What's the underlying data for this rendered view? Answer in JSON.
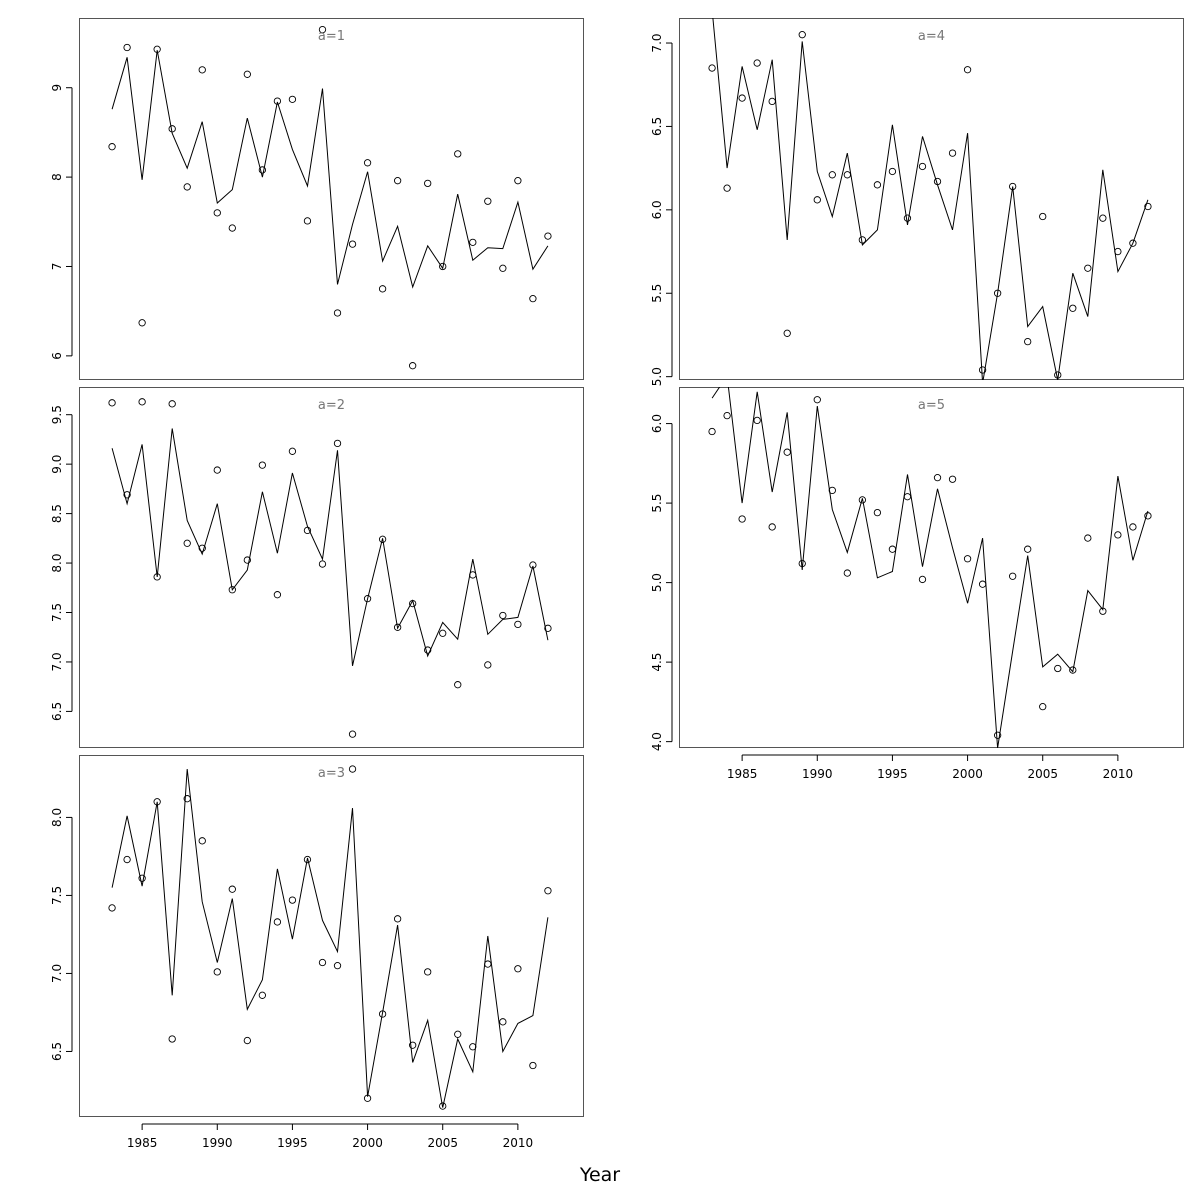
{
  "figure": {
    "xlabel": "Year"
  },
  "chart_data": [
    {
      "type": "line",
      "title": "a=1",
      "xlim": [
        1980.8,
        2014.4
      ],
      "ylim": [
        5.73,
        9.78
      ],
      "xticks": [
        1985,
        1990,
        1995,
        2000,
        2005,
        2010
      ],
      "yticks": [
        6,
        7,
        8,
        9
      ],
      "x": [
        1983,
        1984,
        1985,
        1986,
        1987,
        1988,
        1989,
        1990,
        1991,
        1992,
        1993,
        1994,
        1995,
        1996,
        1997,
        1998,
        1999,
        2000,
        2001,
        2002,
        2003,
        2004,
        2005,
        2006,
        2007,
        2008,
        2009,
        2010,
        2011,
        2012
      ],
      "series": [
        {
          "kind": "points",
          "values": [
            8.34,
            9.45,
            6.37,
            9.43,
            8.54,
            7.89,
            9.2,
            7.6,
            7.43,
            9.15,
            8.08,
            8.85,
            8.87,
            7.51,
            9.65,
            6.48,
            7.25,
            8.16,
            6.75,
            7.96,
            5.89,
            7.93,
            7.0,
            8.26,
            7.27,
            7.73,
            6.98,
            7.96,
            6.64,
            7.34
          ]
        },
        {
          "kind": "fitted",
          "values": [
            8.76,
            9.34,
            7.97,
            9.42,
            8.49,
            8.1,
            8.62,
            7.71,
            7.86,
            8.66,
            8.0,
            8.84,
            8.31,
            7.9,
            8.99,
            6.8,
            7.47,
            8.06,
            7.06,
            7.45,
            6.77,
            7.23,
            6.98,
            7.81,
            7.07,
            7.21,
            7.2,
            7.72,
            6.97,
            7.23
          ]
        }
      ]
    },
    {
      "type": "line",
      "title": "a=2",
      "xlim": [
        1980.8,
        2014.4
      ],
      "ylim": [
        6.13,
        9.78
      ],
      "xticks": [
        1985,
        1990,
        1995,
        2000,
        2005,
        2010
      ],
      "yticks": [
        6.5,
        7.0,
        7.5,
        8.0,
        8.5,
        9.0,
        9.5
      ],
      "x": [
        1983,
        1984,
        1985,
        1986,
        1987,
        1988,
        1989,
        1990,
        1991,
        1992,
        1993,
        1994,
        1995,
        1996,
        1997,
        1998,
        1999,
        2000,
        2001,
        2002,
        2003,
        2004,
        2005,
        2006,
        2007,
        2008,
        2009,
        2010,
        2011,
        2012
      ],
      "series": [
        {
          "kind": "points",
          "values": [
            9.62,
            8.69,
            9.63,
            7.86,
            9.61,
            8.2,
            8.15,
            8.94,
            7.73,
            8.03,
            8.99,
            7.68,
            9.13,
            8.33,
            7.99,
            9.21,
            6.27,
            7.64,
            8.24,
            7.35,
            7.59,
            7.12,
            7.29,
            6.77,
            7.88,
            6.97,
            7.47,
            7.38,
            7.98,
            7.34
          ]
        },
        {
          "kind": "fitted",
          "values": [
            9.16,
            8.6,
            9.2,
            7.86,
            9.36,
            8.43,
            8.09,
            8.6,
            7.73,
            7.93,
            8.72,
            8.1,
            8.91,
            8.37,
            8.04,
            9.14,
            6.96,
            7.64,
            8.25,
            7.34,
            7.62,
            7.06,
            7.4,
            7.23,
            8.04,
            7.28,
            7.43,
            7.45,
            7.97,
            7.22
          ]
        }
      ]
    },
    {
      "type": "line",
      "title": "a=3",
      "xlim": [
        1980.8,
        2014.4
      ],
      "ylim": [
        6.08,
        8.4
      ],
      "xticks": [
        1985,
        1990,
        1995,
        2000,
        2005,
        2010
      ],
      "yticks": [
        6.5,
        7.0,
        7.5,
        8.0
      ],
      "x": [
        1983,
        1984,
        1985,
        1986,
        1987,
        1988,
        1989,
        1990,
        1991,
        1992,
        1993,
        1994,
        1995,
        1996,
        1997,
        1998,
        1999,
        2000,
        2001,
        2002,
        2003,
        2004,
        2005,
        2006,
        2007,
        2008,
        2009,
        2010,
        2011,
        2012
      ],
      "series": [
        {
          "kind": "points",
          "values": [
            7.42,
            7.73,
            7.61,
            8.1,
            6.58,
            8.12,
            7.85,
            7.01,
            7.54,
            6.57,
            6.86,
            7.33,
            7.47,
            7.73,
            7.07,
            7.05,
            8.31,
            6.2,
            6.74,
            7.35,
            6.54,
            7.01,
            6.15,
            6.61,
            6.53,
            7.06,
            6.69,
            7.03,
            6.41,
            7.53
          ]
        },
        {
          "kind": "fitted",
          "values": [
            7.55,
            8.01,
            7.56,
            8.1,
            6.86,
            8.31,
            7.46,
            7.07,
            7.48,
            6.77,
            6.96,
            7.67,
            7.22,
            7.74,
            7.34,
            7.14,
            8.06,
            6.21,
            6.75,
            7.31,
            6.43,
            6.7,
            6.14,
            6.58,
            6.37,
            7.24,
            6.5,
            6.68,
            6.73,
            7.36
          ]
        }
      ]
    },
    {
      "type": "line",
      "title": "a=4",
      "xlim": [
        1980.8,
        2014.4
      ],
      "ylim": [
        4.98,
        7.15
      ],
      "xticks": [
        1985,
        1990,
        1995,
        2000,
        2005,
        2010
      ],
      "yticks": [
        5.0,
        5.5,
        6.0,
        6.5,
        7.0
      ],
      "x": [
        1983,
        1984,
        1985,
        1986,
        1987,
        1988,
        1989,
        1990,
        1991,
        1992,
        1993,
        1994,
        1995,
        1996,
        1997,
        1998,
        1999,
        2000,
        2001,
        2002,
        2003,
        2004,
        2005,
        2006,
        2007,
        2008,
        2009,
        2010,
        2011,
        2012
      ],
      "series": [
        {
          "kind": "points",
          "values": [
            6.85,
            6.13,
            6.67,
            6.88,
            6.65,
            5.26,
            7.05,
            6.06,
            6.21,
            6.21,
            5.82,
            6.15,
            6.23,
            5.95,
            6.26,
            6.17,
            6.34,
            6.84,
            5.04,
            5.5,
            6.14,
            5.21,
            5.96,
            5.01,
            5.41,
            5.65,
            5.95,
            5.75,
            5.8,
            6.02
          ]
        },
        {
          "kind": "fitted",
          "values": [
            7.2,
            6.25,
            6.86,
            6.48,
            6.9,
            5.82,
            7.01,
            6.23,
            5.96,
            6.34,
            5.79,
            5.88,
            6.51,
            5.91,
            6.44,
            6.15,
            5.88,
            6.46,
            4.96,
            5.5,
            6.14,
            5.3,
            5.42,
            4.98,
            5.62,
            5.36,
            6.24,
            5.63,
            5.8,
            6.06
          ]
        }
      ]
    },
    {
      "type": "line",
      "title": "a=5",
      "xlim": [
        1980.8,
        2014.4
      ],
      "ylim": [
        3.96,
        6.23
      ],
      "xticks": [
        1985,
        1990,
        1995,
        2000,
        2005,
        2010
      ],
      "yticks": [
        4.0,
        4.5,
        5.0,
        5.5,
        6.0
      ],
      "x": [
        1983,
        1984,
        1985,
        1986,
        1987,
        1988,
        1989,
        1990,
        1991,
        1992,
        1993,
        1994,
        1995,
        1996,
        1997,
        1998,
        1999,
        2000,
        2001,
        2002,
        2003,
        2004,
        2005,
        2006,
        2007,
        2008,
        2009,
        2010,
        2011,
        2012
      ],
      "series": [
        {
          "kind": "points",
          "values": [
            5.95,
            6.05,
            5.4,
            6.02,
            5.35,
            5.82,
            5.12,
            6.15,
            5.58,
            5.06,
            5.52,
            5.44,
            5.21,
            5.54,
            5.02,
            5.66,
            5.65,
            5.15,
            4.99,
            4.04,
            5.04,
            5.21,
            4.22,
            4.46,
            4.45,
            5.28,
            4.82,
            5.3,
            5.35,
            5.42
          ]
        },
        {
          "kind": "fitted",
          "values": [
            6.16,
            6.3,
            5.5,
            6.2,
            5.57,
            6.07,
            5.08,
            6.11,
            5.46,
            5.19,
            5.53,
            5.03,
            5.07,
            5.68,
            5.1,
            5.59,
            5.22,
            4.87,
            5.28,
            3.96,
            4.57,
            5.17,
            4.47,
            4.55,
            4.44,
            4.95,
            4.83,
            5.67,
            5.14,
            5.45
          ]
        }
      ]
    }
  ]
}
